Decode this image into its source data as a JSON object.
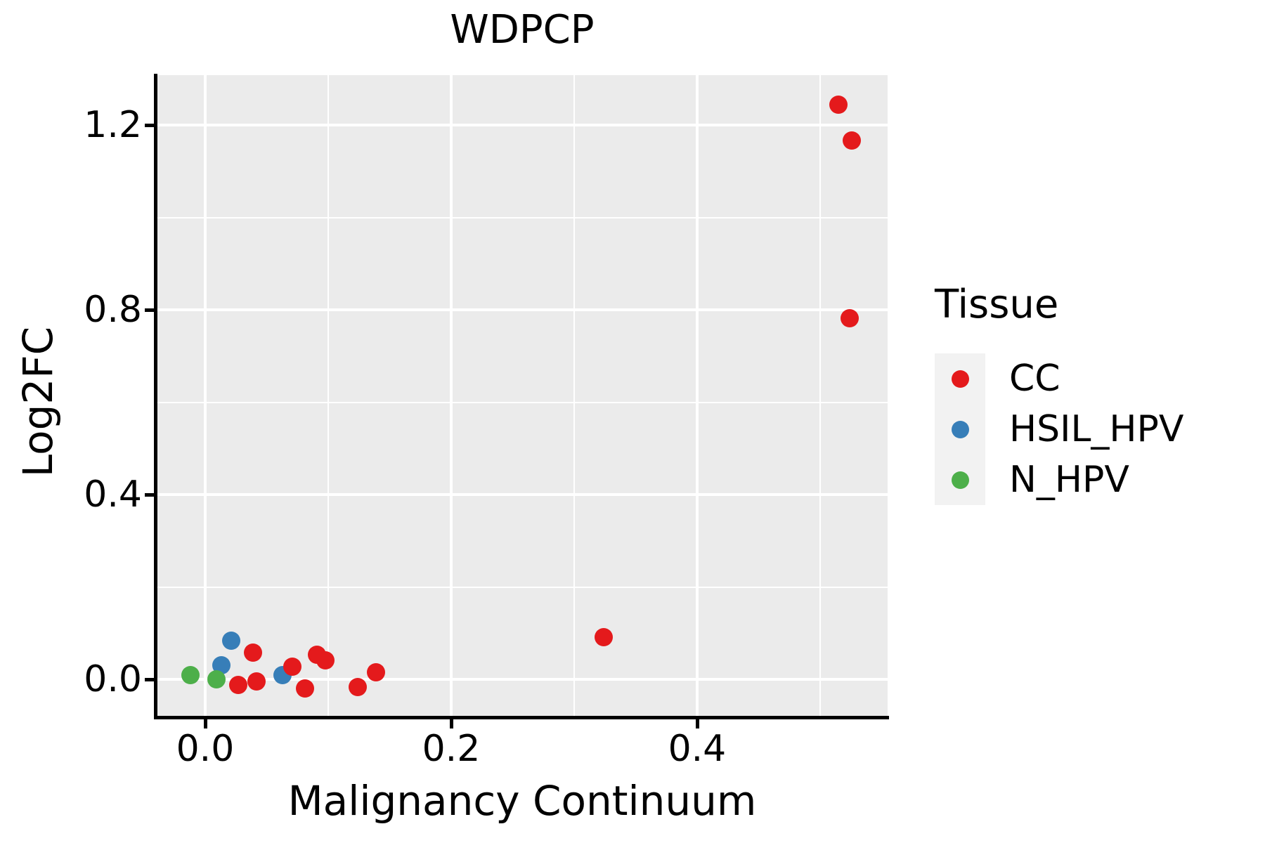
{
  "title": "WDPCP",
  "colors": {
    "panel_bg": "#EBEBEB",
    "grid": "#FFFFFF",
    "spine": "#000000",
    "legend_key_bg": "#F2F2F2",
    "cc": "#E41A1C",
    "hsil_hpv": "#377EB8",
    "n_hpv": "#4DAF4A"
  },
  "legend": {
    "title": "Tissue"
  },
  "chart_data": {
    "type": "scatter",
    "title": "WDPCP",
    "xlabel": "Malignancy Continuum",
    "ylabel": "Log2FC",
    "xlim": [
      -0.0394,
      0.5549
    ],
    "ylim": [
      -0.0821,
      1.308
    ],
    "x_ticks": [
      0.0,
      0.2,
      0.4
    ],
    "x_tick_labels": [
      "0.0",
      "0.2",
      "0.4"
    ],
    "x_minor_ticks": [
      0.1,
      0.3,
      0.5
    ],
    "y_ticks": [
      0.0,
      0.4,
      0.8,
      1.2
    ],
    "y_tick_labels": [
      "0.0",
      "0.4",
      "0.8",
      "1.2"
    ],
    "y_minor_ticks": [
      0.2,
      0.6,
      1.0
    ],
    "grid": true,
    "legend_title": "Tissue",
    "legend_position": "right",
    "series": [
      {
        "name": "CC",
        "color": "#E41A1C",
        "points": [
          [
            0.515,
            1.244
          ],
          [
            0.526,
            1.167
          ],
          [
            0.524,
            0.782
          ],
          [
            0.324,
            0.091
          ],
          [
            0.039,
            0.058
          ],
          [
            0.027,
            -0.012
          ],
          [
            0.042,
            -0.005
          ],
          [
            0.071,
            0.027
          ],
          [
            0.091,
            0.053
          ],
          [
            0.098,
            0.041
          ],
          [
            0.081,
            -0.02
          ],
          [
            0.124,
            -0.017
          ],
          [
            0.139,
            0.015
          ]
        ]
      },
      {
        "name": "HSIL_HPV",
        "color": "#377EB8",
        "points": [
          [
            0.021,
            0.084
          ],
          [
            0.013,
            0.03
          ],
          [
            0.063,
            0.009
          ]
        ]
      },
      {
        "name": "N_HPV",
        "color": "#4DAF4A",
        "points": [
          [
            -0.012,
            0.009
          ],
          [
            0.009,
            0.0
          ]
        ]
      }
    ],
    "draw_order": [
      "HSIL_HPV",
      "N_HPV",
      "CC"
    ]
  }
}
